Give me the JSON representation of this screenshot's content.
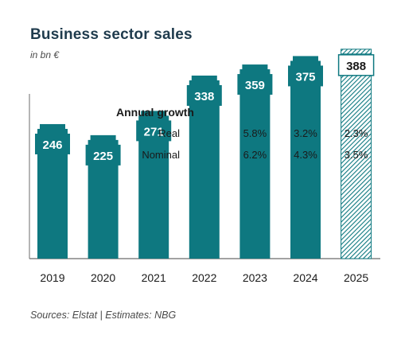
{
  "header": {
    "title": "Business sector sales",
    "subtitle": "in bn €"
  },
  "footer": {
    "source": "Sources: Elstat | Estimates: NBG"
  },
  "colors": {
    "bar": "#0e7880",
    "estimate_hatch": "#0e7880",
    "axis": "#6b6b6b",
    "label_text": "#ffffff",
    "estimate_label_text": "#1a1a1a"
  },
  "chart_data": {
    "type": "bar",
    "title": "Business sector sales",
    "ylabel": "in bn €",
    "categories": [
      "2019",
      "2020",
      "2021",
      "2022",
      "2023",
      "2024",
      "2025"
    ],
    "values": [
      246,
      225,
      271,
      338,
      359,
      375,
      388
    ],
    "estimate": [
      false,
      false,
      false,
      false,
      false,
      false,
      true
    ],
    "ylim": [
      0,
      430
    ],
    "grid": false,
    "growth_table": {
      "heading": "Annual growth",
      "rows": [
        {
          "label": "Real",
          "values": [
            "",
            "",
            "",
            "",
            "5.8%",
            "3.2%",
            "2.3%"
          ]
        },
        {
          "label": "Nominal",
          "values": [
            "",
            "",
            "",
            "",
            "6.2%",
            "4.3%",
            "3.5%"
          ]
        }
      ]
    }
  }
}
